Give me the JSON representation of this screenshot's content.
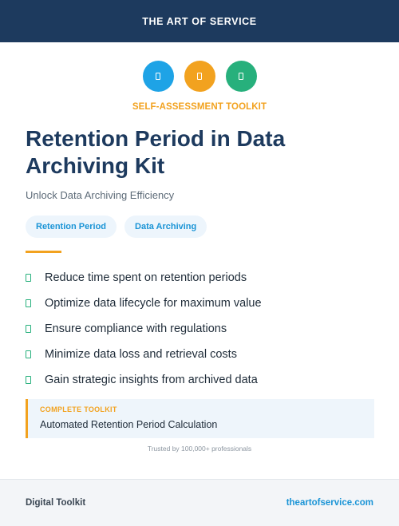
{
  "header": {
    "brand": "THE ART OF SERVICE"
  },
  "icons": [
    {
      "name": "document-icon",
      "color": "#1ea3e6"
    },
    {
      "name": "document-icon",
      "color": "#f2a21f"
    },
    {
      "name": "document-icon",
      "color": "#27b07c"
    }
  ],
  "kicker": "SELF-ASSESSMENT TOOLKIT",
  "title": "Retention Period in Data Archiving Kit",
  "subtitle": "Unlock Data Archiving Efficiency",
  "tags": [
    "Retention Period",
    "Data Archiving"
  ],
  "benefits": [
    "Reduce time spent on retention periods",
    "Optimize data lifecycle for maximum value",
    "Ensure compliance with regulations",
    "Minimize data loss and retrieval costs",
    "Gain strategic insights from archived data"
  ],
  "callout": {
    "label": "COMPLETE TOOLKIT",
    "value": "Automated Retention Period Calculation"
  },
  "trusted": "Trusted by 100,000+ professionals",
  "footer": {
    "left": "Digital Toolkit",
    "right": "theartofservice.com"
  },
  "colors": {
    "navy": "#1d3a5e",
    "orange": "#f2a21f",
    "blue": "#1a94d6",
    "green": "#27b07c"
  }
}
